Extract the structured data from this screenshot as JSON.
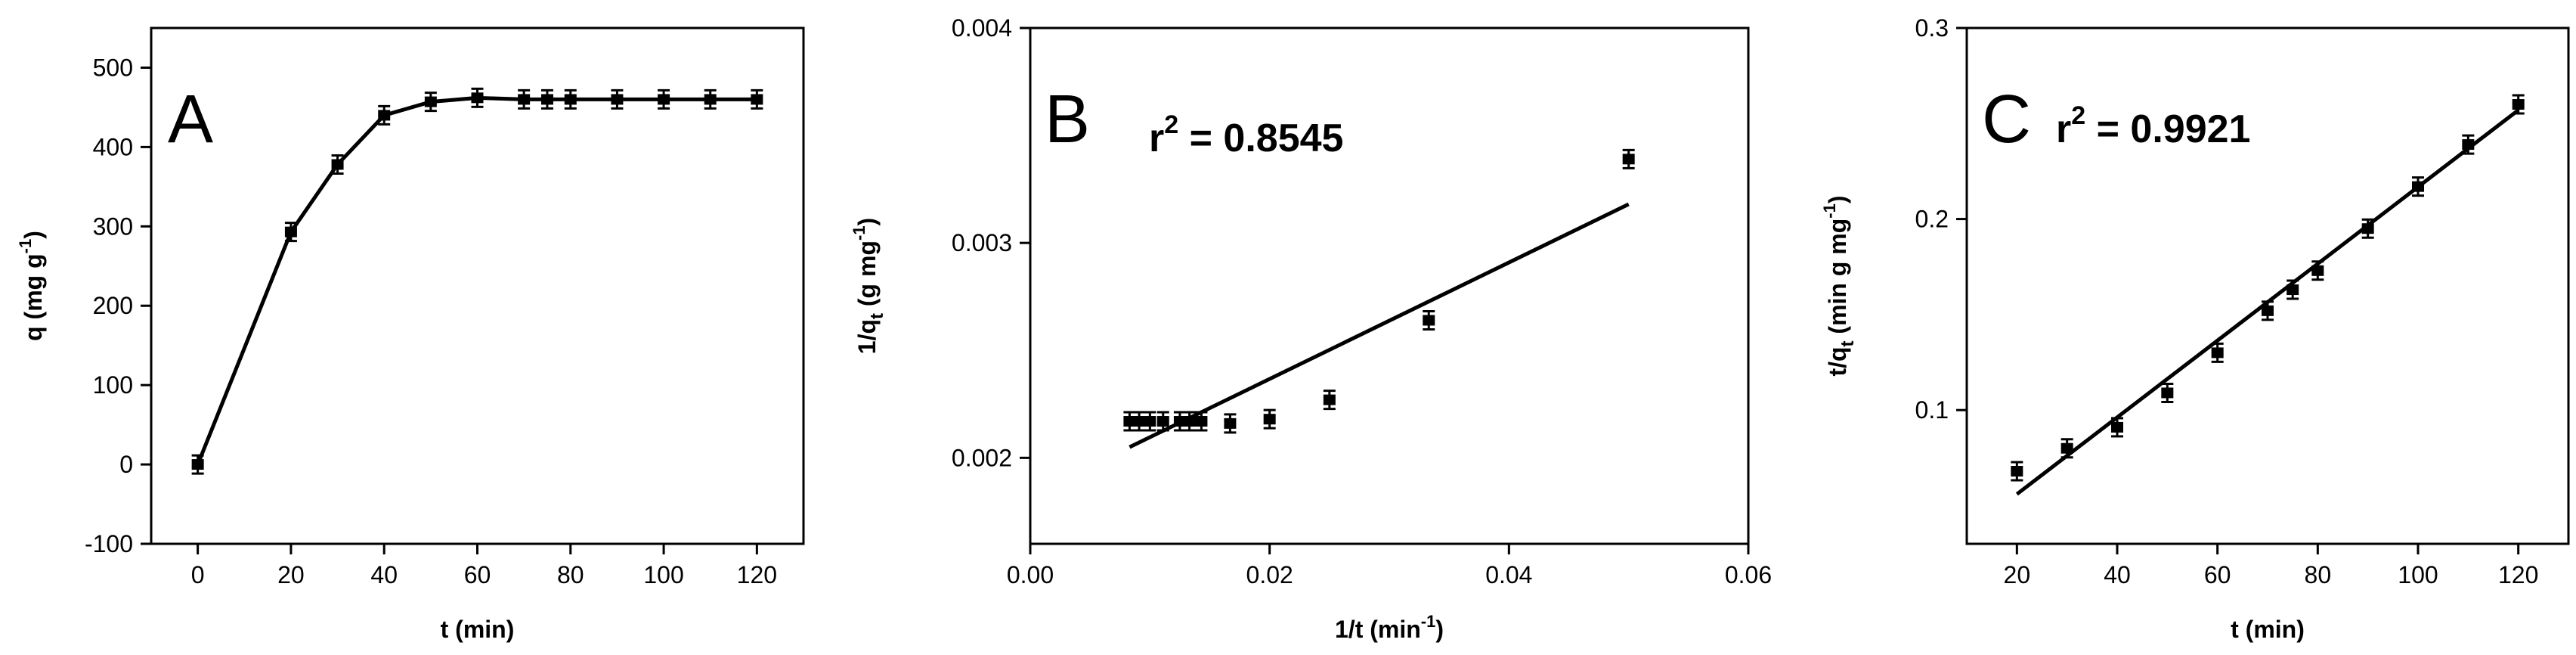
{
  "chart_data": [
    {
      "panel": "A",
      "type": "line",
      "markers": true,
      "xlabel": "t (min)",
      "ylabel_main": "q (mg g",
      "ylabel_sup": "-1",
      "ylabel_tail": ")",
      "xlim": [
        -10,
        130
      ],
      "ylim": [
        -100,
        550
      ],
      "xticks": [
        0,
        20,
        40,
        60,
        80,
        100,
        120
      ],
      "yticks": [
        -100,
        0,
        100,
        200,
        300,
        400,
        500
      ],
      "series": [
        {
          "x": [
            0,
            20,
            30,
            40,
            50,
            60,
            70,
            75,
            80,
            90,
            100,
            110,
            120
          ],
          "y": [
            0,
            293,
            378,
            440,
            457,
            462,
            460,
            460,
            460,
            460,
            460,
            460,
            460
          ]
        }
      ]
    },
    {
      "panel": "B",
      "type": "scatter",
      "fit_line": true,
      "annotation_main": "r",
      "annotation_sup": "2",
      "annotation_tail": " = 0.8545",
      "xlabel_main": "1/t (min",
      "xlabel_sup": "-1",
      "xlabel_tail": ")",
      "ylabel_main": "1/q",
      "ylabel_sub": "t",
      "ylabel_mid": " (g mg",
      "ylabel_sup": "-1",
      "ylabel_tail": ")",
      "xlim": [
        0,
        0.06
      ],
      "ylim": [
        0.0016,
        0.004
      ],
      "xticks": [
        "0.00",
        "0.02",
        "0.04",
        "0.06"
      ],
      "yticks": [
        "0.002",
        "0.003",
        "0.004"
      ],
      "series": [
        {
          "x": [
            0.05,
            0.0333,
            0.025,
            0.02,
            0.0167,
            0.0143,
            0.0133,
            0.0125,
            0.0111,
            0.01,
            0.0091,
            0.0083
          ],
          "y": [
            0.00339,
            0.00264,
            0.00227,
            0.00218,
            0.00216,
            0.00217,
            0.00217,
            0.00217,
            0.00217,
            0.00217,
            0.00217,
            0.00217
          ]
        }
      ],
      "fit": {
        "x": [
          0.0083,
          0.05
        ],
        "y": [
          0.00205,
          0.00318
        ]
      }
    },
    {
      "panel": "C",
      "type": "scatter",
      "fit_line": true,
      "annotation_main": "r",
      "annotation_sup": "2",
      "annotation_tail": " = 0.9921",
      "xlabel": "t (min)",
      "ylabel_main": "t/q",
      "ylabel_sub": "t",
      "ylabel_mid": " (min g mg",
      "ylabel_sup": "-1",
      "ylabel_tail": ")",
      "xlim": [
        10,
        130
      ],
      "ylim": [
        0.03,
        0.3
      ],
      "xticks": [
        20,
        40,
        60,
        80,
        100,
        120
      ],
      "yticks": [
        "0.1",
        "0.2",
        "0.3"
      ],
      "series": [
        {
          "x": [
            20,
            30,
            40,
            50,
            60,
            70,
            75,
            80,
            90,
            100,
            110,
            120
          ],
          "y": [
            0.068,
            0.08,
            0.091,
            0.109,
            0.13,
            0.152,
            0.163,
            0.173,
            0.195,
            0.217,
            0.239,
            0.26
          ]
        }
      ],
      "fit": {
        "x": [
          20,
          120
        ],
        "y": [
          0.056,
          0.257
        ]
      }
    }
  ]
}
